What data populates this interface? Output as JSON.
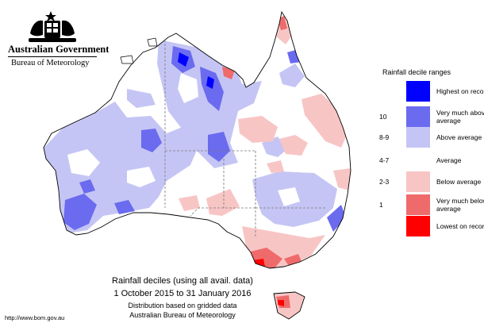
{
  "header": {
    "government": "Australian Government",
    "bureau": "Bureau of Meteorology"
  },
  "legend": {
    "title": "Rainfall decile ranges",
    "items": [
      {
        "range": "",
        "label": "Highest on record",
        "color": "#0000ff"
      },
      {
        "range": "10",
        "label": "Very much above average",
        "color": "#6b6bf0"
      },
      {
        "range": "8-9",
        "label": "Above average",
        "color": "#c5c5f5"
      },
      {
        "range": "4-7",
        "label": "Average",
        "color": "#ffffff"
      },
      {
        "range": "2-3",
        "label": "Below average",
        "color": "#f8c5c5"
      },
      {
        "range": "1",
        "label": "Very much below average",
        "color": "#ef6b6b"
      },
      {
        "range": "",
        "label": "Lowest on record",
        "color": "#ff0000"
      }
    ]
  },
  "caption": {
    "line1": "Rainfall deciles (using all avail. data)",
    "line2": "1 October 2015 to 31 January 2016",
    "line3": "Distribution based on gridded data",
    "line4": "Australian Bureau of Meteorology"
  },
  "footer_url": "http://www.bom.gov.au"
}
